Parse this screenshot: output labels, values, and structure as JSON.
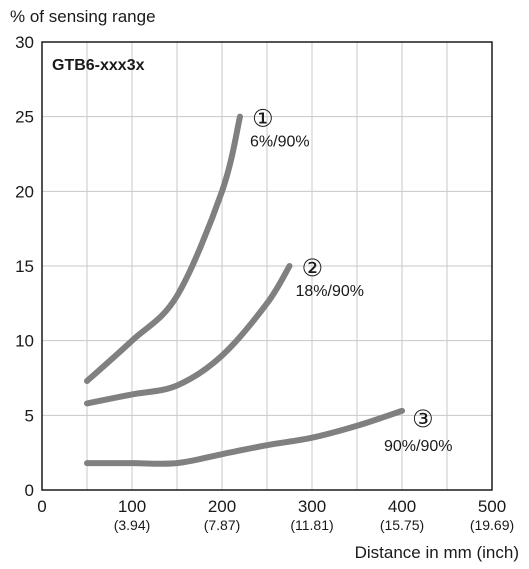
{
  "chart_data": {
    "type": "line",
    "model": "GTB6-xxx3x",
    "ylabel": "% of sensing range",
    "xlabel": "Distance in mm (inch)",
    "xlim": [
      0,
      500
    ],
    "ylim": [
      0,
      30
    ],
    "grid": true,
    "x_ticks": [
      {
        "value": 0,
        "label": "0",
        "sub": ""
      },
      {
        "value": 100,
        "label": "100",
        "sub": "(3.94)"
      },
      {
        "value": 200,
        "label": "200",
        "sub": "(7.87)"
      },
      {
        "value": 300,
        "label": "300",
        "sub": "(11.81)"
      },
      {
        "value": 400,
        "label": "400",
        "sub": "(15.75)"
      },
      {
        "value": 500,
        "label": "500",
        "sub": "(19.69)"
      }
    ],
    "y_ticks": [
      0,
      5,
      10,
      15,
      20,
      25,
      30
    ],
    "series": [
      {
        "marker": "①",
        "name": "6%/90%",
        "x": [
          50,
          100,
          150,
          200,
          220
        ],
        "y": [
          7.3,
          10,
          13,
          20,
          25
        ]
      },
      {
        "marker": "②",
        "name": "18%/90%",
        "x": [
          50,
          100,
          150,
          200,
          250,
          275
        ],
        "y": [
          5.8,
          6.4,
          7,
          9,
          12.5,
          15
        ]
      },
      {
        "marker": "③",
        "name": "90%/90%",
        "x": [
          50,
          100,
          150,
          200,
          250,
          300,
          350,
          400
        ],
        "y": [
          1.8,
          1.8,
          1.8,
          2.4,
          3,
          3.5,
          4.3,
          5.3
        ]
      }
    ],
    "colors": {
      "curve": "#808080",
      "grid": "#c8c8c8",
      "axis": "#1a1a1a"
    }
  }
}
